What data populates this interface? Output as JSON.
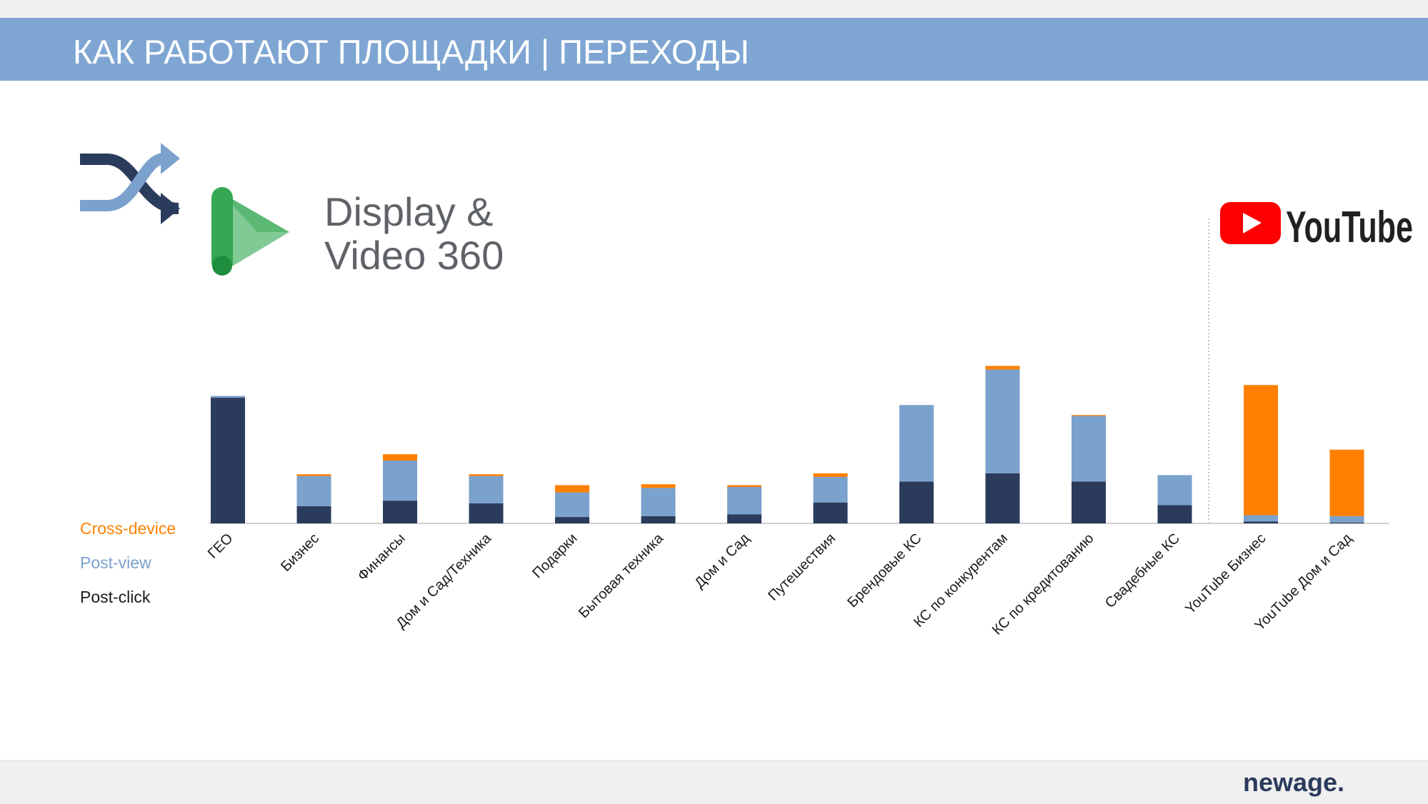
{
  "header": {
    "title": "КАК РАБОТАЮТ ПЛОЩАДКИ | ПЕРЕХОДЫ"
  },
  "logos": {
    "dv360_line1": "Display &",
    "dv360_line2": "Video 360",
    "youtube": "YouTube"
  },
  "footer": {
    "brand": "newage."
  },
  "chart_data": {
    "type": "stacked_bar",
    "categories": [
      "ГЕО",
      "Бизнес",
      "Финансы",
      "Дом и Сад/Техника",
      "Подарки",
      "Бытовая техника",
      "Дом и Сад",
      "Путешествия",
      "Брендовые КС",
      "КС по конкурентам",
      "КС по кредитованию",
      "Свадебные КС",
      "YouTube Бизнес",
      "YouTube Дом и Сад"
    ],
    "series": [
      {
        "name": "Post-click",
        "color": "#2b3b5c",
        "values": [
          138,
          19,
          25,
          22,
          7,
          8,
          10,
          23,
          46,
          55,
          46,
          20,
          2,
          1
        ]
      },
      {
        "name": "Post-view",
        "color": "#7ba1cd",
        "values": [
          2,
          33,
          44,
          30,
          27,
          31,
          30,
          28,
          84,
          114,
          72,
          33,
          7,
          7
        ]
      },
      {
        "name": "Cross-device",
        "color": "#ff8000",
        "values": [
          0,
          2,
          7,
          2,
          8,
          4,
          2,
          4,
          0,
          4,
          1,
          0,
          143,
          73
        ]
      }
    ],
    "ylim": [
      0,
      180
    ]
  }
}
